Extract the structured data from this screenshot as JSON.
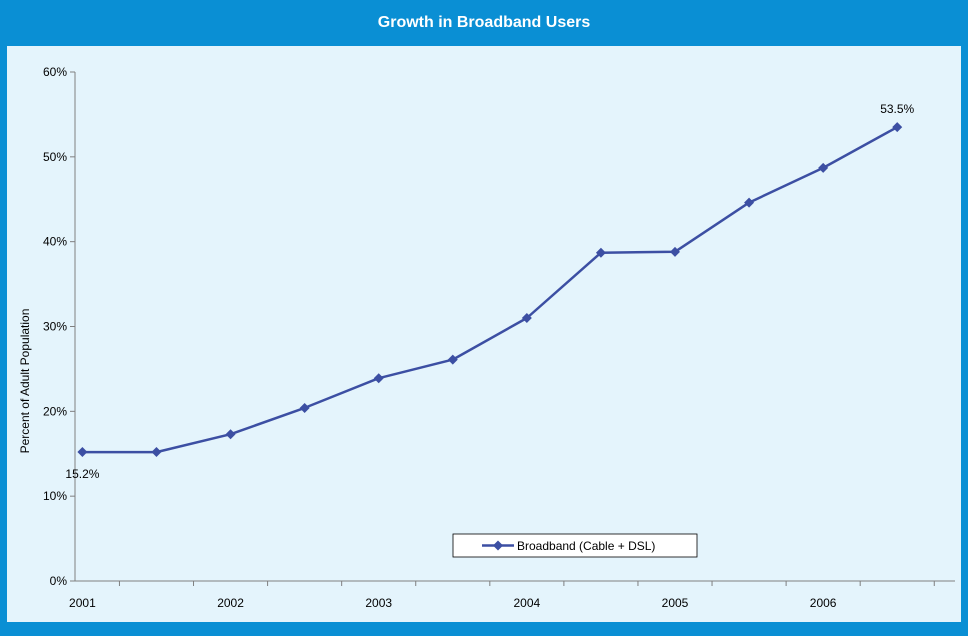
{
  "title": "Growth in Broadband Users",
  "colors": {
    "frame": "#0a8fd4",
    "plot_background": "#e4f4fc",
    "series": "#3c4fa3"
  },
  "chart_data": {
    "type": "line",
    "title": "Growth in Broadband Users",
    "xlabel": "",
    "ylabel": "Percent of Adult Population",
    "ylim": [
      0,
      60
    ],
    "y_ticks": [
      "0%",
      "10%",
      "20%",
      "30%",
      "40%",
      "50%",
      "60%"
    ],
    "x_tick_labels": [
      "2001",
      "2002",
      "2003",
      "2004",
      "2005",
      "2006"
    ],
    "grid": false,
    "legend_position": "bottom-center",
    "series": [
      {
        "name": "Broadband (Cable + DSL)",
        "x": [
          2001.0,
          2001.5,
          2002.0,
          2002.5,
          2003.0,
          2003.5,
          2004.0,
          2004.5,
          2005.0,
          2005.5,
          2006.0,
          2006.5
        ],
        "values": [
          15.2,
          15.2,
          17.3,
          20.4,
          23.9,
          26.1,
          31.0,
          38.7,
          38.8,
          44.6,
          48.7,
          53.5
        ]
      }
    ],
    "data_labels": [
      {
        "index": 0,
        "text": "15.2%"
      },
      {
        "index": 11,
        "text": "53.5%"
      }
    ]
  }
}
